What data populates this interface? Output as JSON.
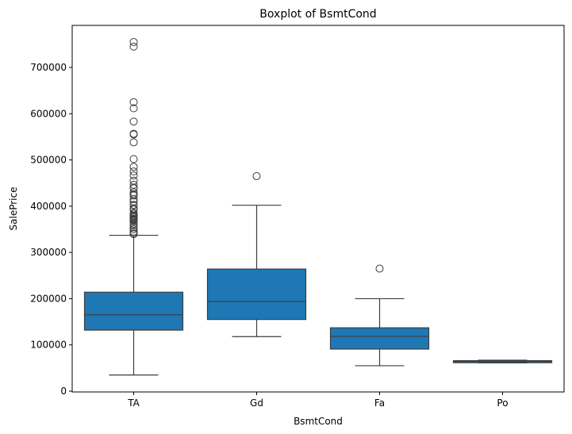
{
  "chart_data": {
    "type": "box",
    "title": "Boxplot of BsmtCond",
    "xlabel": "BsmtCond",
    "ylabel": "SalePrice",
    "ylim": [
      0,
      780000
    ],
    "yticks": [
      0,
      100000,
      200000,
      300000,
      400000,
      500000,
      600000,
      700000
    ],
    "ytick_labels": [
      "0",
      "100000",
      "200000",
      "300000",
      "400000",
      "500000",
      "600000",
      "700000"
    ],
    "grid": false,
    "box_color": "#1f77b4",
    "line_color": "#3d3d3d",
    "categories": [
      "TA",
      "Gd",
      "Fa",
      "Po"
    ],
    "boxes": [
      {
        "category": "TA",
        "whisker_low": 34900,
        "q1": 132000,
        "median": 165000,
        "q3": 214000,
        "whisker_high": 337000,
        "outliers": [
          755000,
          745000,
          625000,
          611657,
          582933,
          556581,
          555000,
          538000,
          501837,
          485000,
          475000,
          466500,
          455000,
          446261,
          440000,
          438780,
          430000,
          426000,
          423000,
          415298,
          410000,
          402861,
          402000,
          395192,
          394617,
          392500,
          385000,
          383970,
          380000,
          378500,
          377500,
          375000,
          372500,
          372402,
          370878,
          369900,
          367294,
          361919,
          359100,
          354000,
          350000,
          345000,
          341000,
          340000,
          339750
        ]
      },
      {
        "category": "Gd",
        "whisker_low": 118000,
        "q1": 155000,
        "median": 194000,
        "q3": 264000,
        "whisker_high": 402000,
        "outliers": [
          465000
        ]
      },
      {
        "category": "Fa",
        "whisker_low": 55000,
        "q1": 91000,
        "median": 118500,
        "q3": 137000,
        "whisker_high": 200000,
        "outliers": [
          265000
        ]
      },
      {
        "category": "Po",
        "whisker_low": 61000,
        "q1": 61500,
        "median": 64000,
        "q3": 66000,
        "whisker_high": 67000,
        "outliers": []
      }
    ]
  }
}
